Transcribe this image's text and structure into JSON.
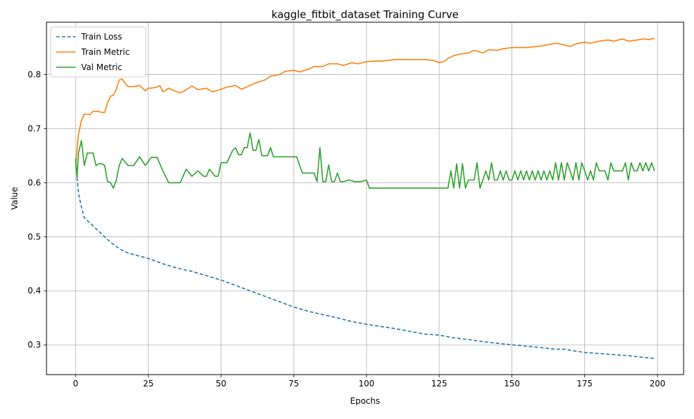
{
  "chart_data": {
    "type": "line",
    "title": "kaggle_fitbit_dataset Training Curve",
    "xlabel": "Epochs",
    "ylabel": "Value",
    "xlim": [
      -10,
      209
    ],
    "ylim": [
      0.245,
      0.897
    ],
    "xticks": [
      0,
      25,
      50,
      75,
      100,
      125,
      150,
      175,
      200
    ],
    "yticks": [
      0.3,
      0.4,
      0.5,
      0.6,
      0.7,
      0.8
    ],
    "grid": true,
    "legend_position": "top-left",
    "series": [
      {
        "name": "Train Loss",
        "color": "#1f77b4",
        "style": "dashed",
        "x": [
          0,
          1,
          2,
          3,
          4,
          6,
          8,
          10,
          12,
          14,
          16,
          18,
          20,
          25,
          30,
          35,
          40,
          45,
          50,
          55,
          60,
          65,
          70,
          75,
          80,
          85,
          90,
          95,
          100,
          110,
          120,
          125,
          130,
          135,
          140,
          150,
          160,
          165,
          168,
          170,
          175,
          180,
          185,
          190,
          195,
          199
        ],
        "y": [
          0.64,
          0.58,
          0.555,
          0.535,
          0.53,
          0.52,
          0.51,
          0.5,
          0.49,
          0.482,
          0.475,
          0.47,
          0.467,
          0.46,
          0.45,
          0.442,
          0.436,
          0.428,
          0.42,
          0.41,
          0.4,
          0.39,
          0.38,
          0.37,
          0.362,
          0.356,
          0.35,
          0.343,
          0.338,
          0.33,
          0.32,
          0.318,
          0.313,
          0.31,
          0.306,
          0.3,
          0.295,
          0.292,
          0.292,
          0.29,
          0.286,
          0.284,
          0.282,
          0.28,
          0.277,
          0.275
        ]
      },
      {
        "name": "Train Metric",
        "color": "#ff7f0e",
        "style": "solid",
        "x": [
          0,
          1,
          2,
          3,
          5,
          6,
          8,
          9,
          10,
          11,
          12,
          13,
          14,
          15,
          16,
          17,
          18,
          20,
          22,
          24,
          25,
          26,
          28,
          29,
          30,
          32,
          34,
          36,
          38,
          40,
          42,
          45,
          47,
          50,
          52,
          55,
          57,
          60,
          62,
          65,
          67,
          70,
          72,
          75,
          77,
          80,
          82,
          85,
          87,
          90,
          92,
          95,
          97,
          100,
          102,
          105,
          110,
          115,
          120,
          123,
          125,
          127,
          128,
          130,
          132,
          135,
          137,
          140,
          142,
          145,
          147,
          150,
          155,
          160,
          162,
          165,
          168,
          170,
          172,
          175,
          177,
          180,
          183,
          185,
          188,
          190,
          193,
          195,
          197,
          199
        ],
        "y": [
          0.63,
          0.69,
          0.715,
          0.727,
          0.726,
          0.732,
          0.732,
          0.73,
          0.73,
          0.748,
          0.76,
          0.762,
          0.773,
          0.79,
          0.792,
          0.784,
          0.778,
          0.778,
          0.78,
          0.77,
          0.775,
          0.775,
          0.777,
          0.78,
          0.768,
          0.775,
          0.77,
          0.766,
          0.772,
          0.779,
          0.772,
          0.775,
          0.768,
          0.773,
          0.777,
          0.78,
          0.773,
          0.78,
          0.785,
          0.79,
          0.797,
          0.8,
          0.806,
          0.808,
          0.805,
          0.81,
          0.815,
          0.815,
          0.82,
          0.82,
          0.817,
          0.822,
          0.82,
          0.824,
          0.825,
          0.825,
          0.828,
          0.828,
          0.828,
          0.826,
          0.822,
          0.825,
          0.83,
          0.835,
          0.838,
          0.84,
          0.845,
          0.84,
          0.846,
          0.845,
          0.848,
          0.85,
          0.85,
          0.853,
          0.855,
          0.858,
          0.855,
          0.852,
          0.857,
          0.86,
          0.858,
          0.862,
          0.864,
          0.862,
          0.866,
          0.862,
          0.864,
          0.866,
          0.865,
          0.867
        ]
      },
      {
        "name": "Val Metric",
        "color": "#2ca02c",
        "style": "solid",
        "x": [
          0,
          0.5,
          1,
          2,
          3,
          4,
          6,
          7,
          8,
          9,
          10,
          11,
          12,
          13,
          14,
          15,
          16,
          18,
          20,
          22,
          24,
          26,
          28,
          30,
          32,
          34,
          36,
          38,
          40,
          42,
          44,
          45,
          46,
          48,
          49,
          50,
          52,
          54,
          55,
          56,
          57,
          58,
          59,
          60,
          61,
          62,
          63,
          64,
          65,
          66,
          67,
          68,
          70,
          72,
          74,
          75,
          76,
          77,
          78,
          80,
          82,
          83,
          84,
          85,
          86,
          87,
          88,
          89,
          90,
          91,
          92,
          94,
          96,
          98,
          100,
          101,
          105,
          110,
          115,
          120,
          125,
          127,
          128,
          129,
          130,
          131,
          132,
          133,
          134,
          135,
          136,
          137,
          138,
          139,
          140,
          141,
          142,
          143,
          144,
          145,
          146,
          147,
          148,
          149,
          150,
          151,
          152,
          153,
          154,
          155,
          156,
          157,
          158,
          159,
          160,
          161,
          162,
          163,
          164,
          165,
          166,
          167,
          168,
          169,
          170,
          171,
          172,
          173,
          174,
          175,
          176,
          177,
          178,
          179,
          180,
          181,
          182,
          183,
          184,
          185,
          186,
          187,
          188,
          189,
          190,
          191,
          192,
          193,
          194,
          195,
          196,
          197,
          198,
          199
        ],
        "y": [
          0.645,
          0.61,
          0.655,
          0.678,
          0.632,
          0.655,
          0.655,
          0.632,
          0.635,
          0.635,
          0.632,
          0.602,
          0.6,
          0.59,
          0.605,
          0.632,
          0.645,
          0.632,
          0.632,
          0.648,
          0.632,
          0.647,
          0.647,
          0.622,
          0.6,
          0.6,
          0.6,
          0.625,
          0.612,
          0.622,
          0.612,
          0.612,
          0.625,
          0.612,
          0.612,
          0.637,
          0.637,
          0.66,
          0.665,
          0.652,
          0.652,
          0.665,
          0.665,
          0.692,
          0.66,
          0.66,
          0.68,
          0.65,
          0.65,
          0.65,
          0.665,
          0.648,
          0.648,
          0.648,
          0.648,
          0.648,
          0.648,
          0.632,
          0.618,
          0.618,
          0.618,
          0.602,
          0.665,
          0.602,
          0.602,
          0.633,
          0.602,
          0.602,
          0.618,
          0.602,
          0.602,
          0.605,
          0.602,
          0.602,
          0.605,
          0.59,
          0.59,
          0.59,
          0.59,
          0.59,
          0.59,
          0.59,
          0.59,
          0.622,
          0.59,
          0.635,
          0.59,
          0.635,
          0.59,
          0.605,
          0.605,
          0.605,
          0.637,
          0.59,
          0.605,
          0.622,
          0.605,
          0.637,
          0.605,
          0.605,
          0.622,
          0.605,
          0.622,
          0.605,
          0.605,
          0.622,
          0.605,
          0.622,
          0.605,
          0.622,
          0.605,
          0.622,
          0.605,
          0.622,
          0.605,
          0.622,
          0.605,
          0.622,
          0.605,
          0.637,
          0.605,
          0.637,
          0.605,
          0.637,
          0.622,
          0.605,
          0.637,
          0.605,
          0.637,
          0.622,
          0.605,
          0.622,
          0.605,
          0.637,
          0.622,
          0.622,
          0.622,
          0.605,
          0.637,
          0.622,
          0.622,
          0.622,
          0.622,
          0.637,
          0.605,
          0.637,
          0.622,
          0.622,
          0.637,
          0.622,
          0.637,
          0.622,
          0.637,
          0.622
        ]
      }
    ]
  }
}
